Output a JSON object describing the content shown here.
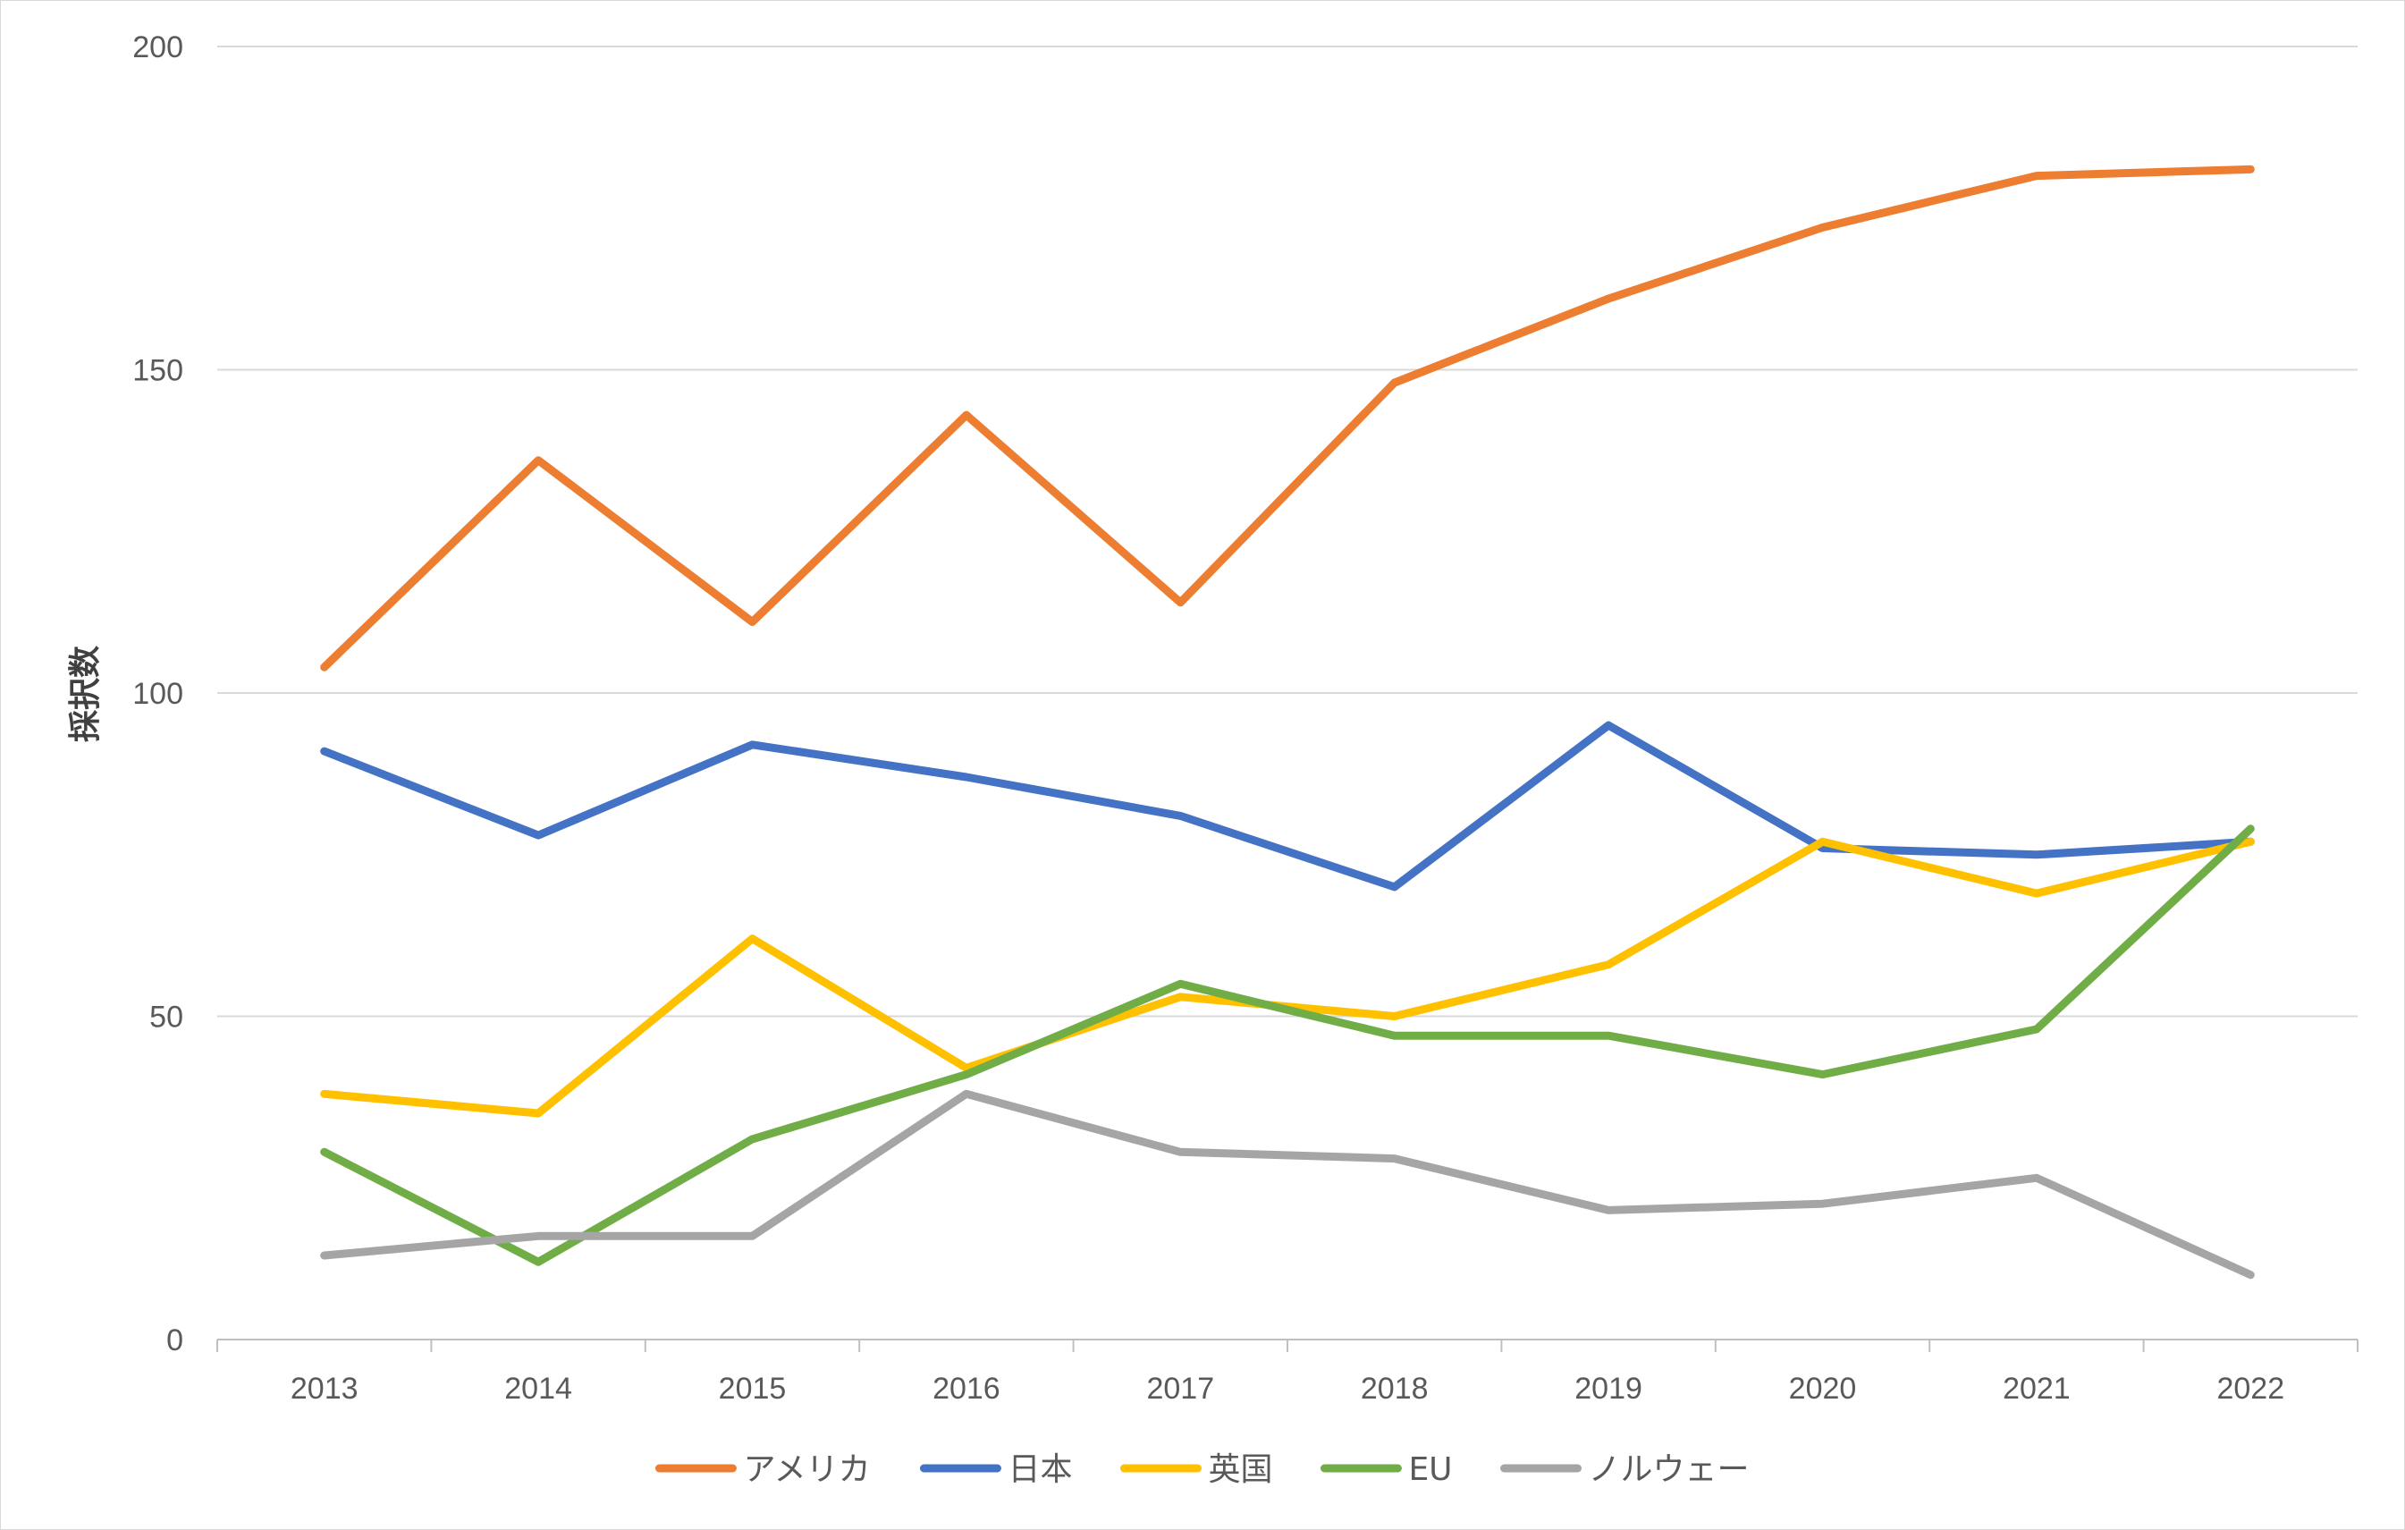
{
  "chart_data": {
    "type": "line",
    "title": "",
    "xlabel": "",
    "ylabel": "採択数",
    "ylim": [
      0,
      200
    ],
    "yticks": [
      0,
      50,
      100,
      150,
      200
    ],
    "grid": true,
    "legend_position": "bottom",
    "categories": [
      "2013",
      "2014",
      "2015",
      "2016",
      "2017",
      "2018",
      "2019",
      "2020",
      "2021",
      "2022"
    ],
    "series": [
      {
        "name": "アメリカ",
        "color": "#ED7D31",
        "values": [
          104,
          136,
          111,
          143,
          114,
          148,
          161,
          172,
          180,
          181
        ]
      },
      {
        "name": "日本",
        "color": "#4472C4",
        "values": [
          91,
          78,
          92,
          87,
          81,
          70,
          95,
          76,
          75,
          77
        ]
      },
      {
        "name": "英国",
        "color": "#FFC000",
        "values": [
          38,
          35,
          62,
          42,
          53,
          50,
          58,
          77,
          69,
          77
        ]
      },
      {
        "name": "EU",
        "color": "#70AD47",
        "values": [
          29,
          12,
          31,
          41,
          55,
          47,
          47,
          41,
          48,
          79
        ]
      },
      {
        "name": "ノルウェー",
        "color": "#A5A5A5",
        "values": [
          13,
          16,
          16,
          38,
          29,
          28,
          20,
          21,
          25,
          10
        ]
      }
    ]
  }
}
